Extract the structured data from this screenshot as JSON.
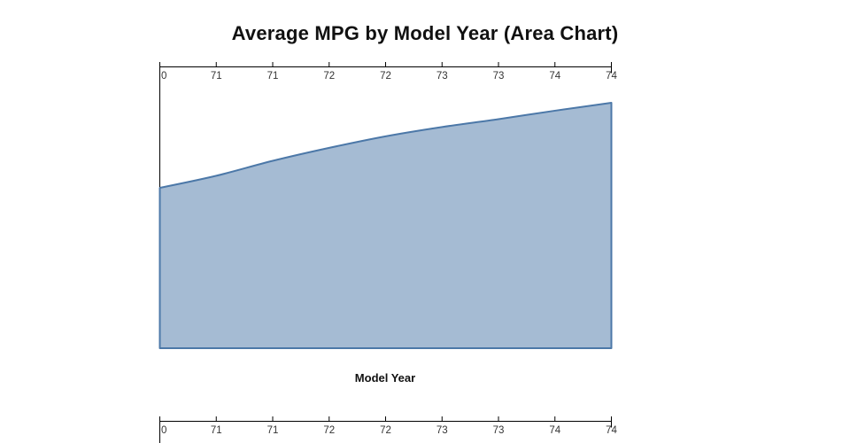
{
  "page": {
    "background": "#ffffff"
  },
  "chart_data": {
    "type": "area",
    "title": "Average MPG by Model Year (Area Chart)",
    "xlabel": "Model Year",
    "x_tick_labels": [
      "0",
      "71",
      "71",
      "72",
      "72",
      "73",
      "73",
      "74",
      "74"
    ],
    "x_axis_positions": [
      "top-of-plot",
      "bottom-edge-of-image-cut-off"
    ],
    "x_tick_direction": "up",
    "y_axis_visible": false,
    "grid": false,
    "legend": false,
    "series": {
      "height_fractions_of_plot": [
        0.569,
        0.612,
        0.665,
        0.711,
        0.752,
        0.785,
        0.813,
        0.843,
        0.871
      ]
    },
    "colors": {
      "area_fill": "#4c78a8",
      "area_fill_opacity": 0.5,
      "area_stroke": "#4c78a8",
      "axis_line": "#000000",
      "tick_label": "#333333",
      "title": "#111111"
    }
  }
}
